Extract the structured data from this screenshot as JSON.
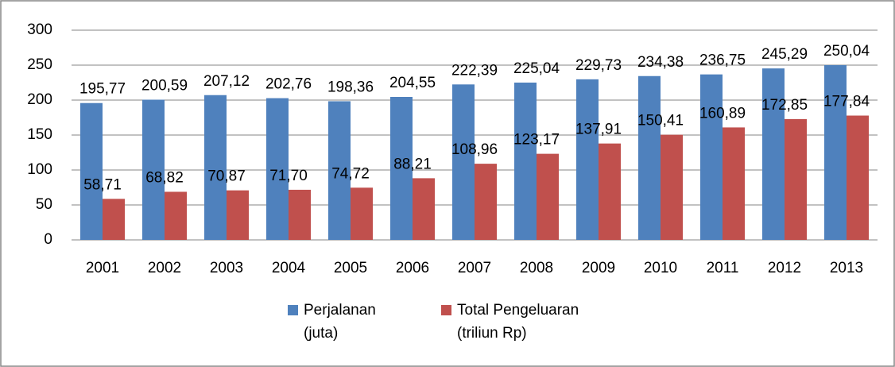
{
  "chart_data": {
    "type": "bar",
    "categories": [
      "2001",
      "2002",
      "2003",
      "2004",
      "2005",
      "2006",
      "2007",
      "2008",
      "2009",
      "2010",
      "2011",
      "2012",
      "2013"
    ],
    "series": [
      {
        "name": "Perjalanan (juta)",
        "color": "#4f81bd",
        "values": [
          195.77,
          200.59,
          207.12,
          202.76,
          198.36,
          204.55,
          222.39,
          225.04,
          229.73,
          234.38,
          236.75,
          245.29,
          250.04
        ],
        "value_labels": [
          "195,77",
          "200,59",
          "207,12",
          "202,76",
          "198,36",
          "204,55",
          "222,39",
          "225,04",
          "229,73",
          "234,38",
          "236,75",
          "245,29",
          "250,04"
        ]
      },
      {
        "name": "Total Pengeluaran (triliun Rp)",
        "color": "#c0504d",
        "values": [
          58.71,
          68.82,
          70.87,
          71.7,
          74.72,
          88.21,
          108.96,
          123.17,
          137.91,
          150.41,
          160.89,
          172.85,
          177.84
        ],
        "value_labels": [
          "58,71",
          "68,82",
          "70,87",
          "71,70",
          "74,72",
          "88,21",
          "108,96",
          "123,17",
          "137,91",
          "150,41",
          "160,89",
          "172,85",
          "177,84"
        ]
      }
    ],
    "ylim": [
      0,
      300
    ],
    "yticks": [
      0,
      50,
      100,
      150,
      200,
      250,
      300
    ],
    "grid": true,
    "legend": "bottom"
  }
}
